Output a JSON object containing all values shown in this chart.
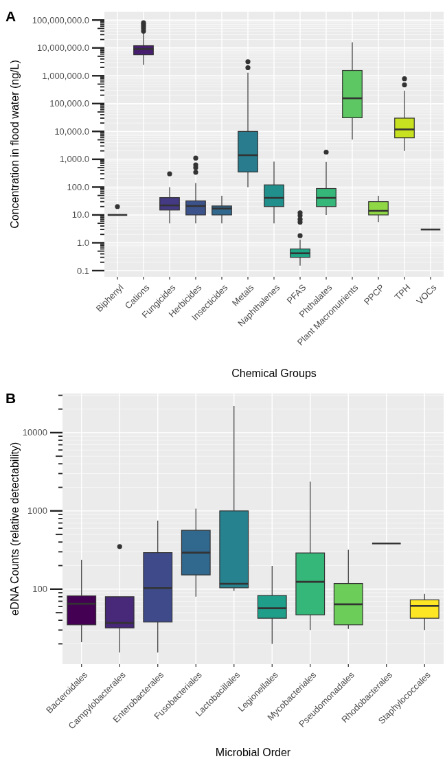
{
  "chart_data": [
    {
      "type": "box",
      "title": "A",
      "xlabel": "Chemical Groups",
      "ylabel": "Concentration in flood water (ng/L)",
      "log": true,
      "grid": true,
      "categories": [
        "Biphenyl",
        "Cations",
        "Fungicides",
        "Herbicides",
        "Insecticides",
        "Metals",
        "Naphthalenes",
        "PFAS",
        "Phthalates",
        "Plant Macronutrients",
        "PPCP",
        "TPH",
        "VOCs"
      ],
      "colors": [
        "#333333",
        "#481f70",
        "#443a83",
        "#3b528b",
        "#31688e",
        "#287c8e",
        "#21908c",
        "#20a486",
        "#35b779",
        "#5dc863",
        "#8fd744",
        "#c7e020",
        "#333333"
      ],
      "boxes": [
        {
          "low": 10,
          "q1": 10,
          "median": 10,
          "q3": 10,
          "high": 10,
          "outliers": [
            20
          ]
        },
        {
          "low": 2450000,
          "q1": 5700000,
          "median": 9100000,
          "q3": 12000000,
          "high": 35000000,
          "outliers": [
            40000000,
            50000000,
            60000000,
            70000000,
            80000000
          ]
        },
        {
          "low": 5,
          "q1": 15,
          "median": 22,
          "q3": 42,
          "high": 100,
          "outliers": [
            300
          ]
        },
        {
          "low": 5,
          "q1": 10,
          "median": 21,
          "q3": 32,
          "high": 140,
          "outliers": [
            340,
            500,
            630,
            1100
          ]
        },
        {
          "low": 5,
          "q1": 10,
          "median": 17,
          "q3": 21,
          "high": 49
        },
        {
          "low": 100,
          "q1": 350,
          "median": 1400,
          "q3": 10000,
          "high": 1300000,
          "outliers": [
            1950000,
            3200000
          ]
        },
        {
          "low": 5,
          "q1": 20,
          "median": 41,
          "q3": 120,
          "high": 830
        },
        {
          "low": 0.15,
          "q1": 0.3,
          "median": 0.42,
          "q3": 0.6,
          "high": 1.3,
          "outliers": [
            1.8,
            5.5,
            7,
            9.5,
            12
          ]
        },
        {
          "low": 10,
          "q1": 20,
          "median": 41,
          "q3": 89,
          "high": 800,
          "outliers": [
            1800
          ]
        },
        {
          "low": 5100,
          "q1": 31000,
          "median": 155000,
          "q3": 1550000,
          "high": 16000000
        },
        {
          "low": 5.6,
          "q1": 10,
          "median": 14,
          "q3": 30,
          "high": 49
        },
        {
          "low": 2000,
          "q1": 5900,
          "median": 11800,
          "q3": 30000,
          "high": 290000,
          "outliers": [
            470000,
            780000
          ]
        },
        {
          "low": 3,
          "q1": 3,
          "median": 3,
          "q3": 3,
          "high": 3
        }
      ],
      "ylim": [
        0.06,
        200000000
      ],
      "yticks": [
        {
          "value": 0.1,
          "label": "0.1"
        },
        {
          "value": 0.2,
          "label": null
        },
        {
          "value": 0.3,
          "label": null
        },
        {
          "value": 0.4,
          "label": null
        },
        {
          "value": 0.5,
          "label": null
        },
        {
          "value": 0.6,
          "label": null
        },
        {
          "value": 0.7,
          "label": null
        },
        {
          "value": 0.8,
          "label": null
        },
        {
          "value": 0.9,
          "label": null
        },
        {
          "value": 1,
          "label": "1.0"
        },
        {
          "value": 2,
          "label": null
        },
        {
          "value": 3,
          "label": null
        },
        {
          "value": 4,
          "label": null
        },
        {
          "value": 5,
          "label": null
        },
        {
          "value": 6,
          "label": null
        },
        {
          "value": 7,
          "label": null
        },
        {
          "value": 8,
          "label": null
        },
        {
          "value": 9,
          "label": null
        },
        {
          "value": 10,
          "label": "10.0"
        },
        {
          "value": 20,
          "label": null
        },
        {
          "value": 30,
          "label": null
        },
        {
          "value": 40,
          "label": null
        },
        {
          "value": 50,
          "label": null
        },
        {
          "value": 60,
          "label": null
        },
        {
          "value": 70,
          "label": null
        },
        {
          "value": 80,
          "label": null
        },
        {
          "value": 90,
          "label": null
        },
        {
          "value": 100,
          "label": "100.0"
        },
        {
          "value": 200,
          "label": null
        },
        {
          "value": 300,
          "label": null
        },
        {
          "value": 400,
          "label": null
        },
        {
          "value": 500,
          "label": null
        },
        {
          "value": 600,
          "label": null
        },
        {
          "value": 700,
          "label": null
        },
        {
          "value": 800,
          "label": null
        },
        {
          "value": 900,
          "label": null
        },
        {
          "value": 1000,
          "label": "1,000.0"
        },
        {
          "value": 2000,
          "label": null
        },
        {
          "value": 3000,
          "label": null
        },
        {
          "value": 4000,
          "label": null
        },
        {
          "value": 5000,
          "label": null
        },
        {
          "value": 6000,
          "label": null
        },
        {
          "value": 7000,
          "label": null
        },
        {
          "value": 8000,
          "label": null
        },
        {
          "value": 9000,
          "label": null
        },
        {
          "value": 10000,
          "label": "10,000.0"
        },
        {
          "value": 20000,
          "label": null
        },
        {
          "value": 30000,
          "label": null
        },
        {
          "value": 40000,
          "label": null
        },
        {
          "value": 50000,
          "label": null
        },
        {
          "value": 60000,
          "label": null
        },
        {
          "value": 70000,
          "label": null
        },
        {
          "value": 80000,
          "label": null
        },
        {
          "value": 90000,
          "label": null
        },
        {
          "value": 100000,
          "label": "100,000.0"
        },
        {
          "value": 200000,
          "label": null
        },
        {
          "value": 300000,
          "label": null
        },
        {
          "value": 400000,
          "label": null
        },
        {
          "value": 500000,
          "label": null
        },
        {
          "value": 600000,
          "label": null
        },
        {
          "value": 700000,
          "label": null
        },
        {
          "value": 800000,
          "label": null
        },
        {
          "value": 900000,
          "label": null
        },
        {
          "value": 1000000,
          "label": "1,000,000.0"
        },
        {
          "value": 2000000,
          "label": null
        },
        {
          "value": 3000000,
          "label": null
        },
        {
          "value": 4000000,
          "label": null
        },
        {
          "value": 5000000,
          "label": null
        },
        {
          "value": 6000000,
          "label": null
        },
        {
          "value": 7000000,
          "label": null
        },
        {
          "value": 8000000,
          "label": null
        },
        {
          "value": 9000000,
          "label": null
        },
        {
          "value": 10000000,
          "label": "10,000,000.0"
        },
        {
          "value": 20000000,
          "label": null
        },
        {
          "value": 30000000,
          "label": null
        },
        {
          "value": 40000000,
          "label": null
        },
        {
          "value": 50000000,
          "label": null
        },
        {
          "value": 60000000,
          "label": null
        },
        {
          "value": 70000000,
          "label": null
        },
        {
          "value": 80000000,
          "label": null
        },
        {
          "value": 90000000,
          "label": null
        },
        {
          "value": 100000000,
          "label": "100,000,000.0"
        }
      ]
    },
    {
      "type": "box",
      "title": "B",
      "xlabel": "Microbial Order",
      "ylabel": "eDNA Counts (relative detectability)",
      "log": true,
      "grid": true,
      "categories": [
        "Bacteroidales",
        "Campylobacterales",
        "Enterobacterales",
        "Fusobacteriales",
        "Lactobacillales",
        "Legionellales",
        "Mycobacteriales",
        "Pseudomonadales",
        "Rhodobacterales",
        "Staphylococcales"
      ],
      "colors": [
        "#440154",
        "#482878",
        "#3e4a89",
        "#31688e",
        "#26828e",
        "#1f9e89",
        "#35b779",
        "#6dcd59",
        "#333333",
        "#fde725"
      ],
      "boxes": [
        {
          "low": 21,
          "q1": 35,
          "median": 65,
          "q3": 82,
          "high": 237
        },
        {
          "low": 15.5,
          "q1": 32,
          "median": 37,
          "q3": 80,
          "high": 80,
          "outliers": [
            350
          ]
        },
        {
          "low": 15.5,
          "q1": 38,
          "median": 103,
          "q3": 293,
          "high": 750
        },
        {
          "low": 80,
          "q1": 152,
          "median": 293,
          "q3": 565,
          "high": 1070
        },
        {
          "low": 95,
          "q1": 104,
          "median": 117,
          "q3": 1000,
          "high": 22000
        },
        {
          "low": 20,
          "q1": 42.5,
          "median": 57,
          "q3": 83,
          "high": 198
        },
        {
          "low": 30,
          "q1": 47,
          "median": 124,
          "q3": 290,
          "high": 2370
        },
        {
          "low": 31,
          "q1": 35,
          "median": 64,
          "q3": 118,
          "high": 319
        },
        {
          "low": 384,
          "q1": 384,
          "median": 384,
          "q3": 384,
          "high": 384
        },
        {
          "low": 30,
          "q1": 42.5,
          "median": 61,
          "q3": 73,
          "high": 87
        }
      ],
      "ylim": [
        11,
        31600
      ],
      "yticks": [
        {
          "value": 20,
          "label": null
        },
        {
          "value": 30,
          "label": null
        },
        {
          "value": 40,
          "label": null
        },
        {
          "value": 50,
          "label": null
        },
        {
          "value": 60,
          "label": null
        },
        {
          "value": 70,
          "label": null
        },
        {
          "value": 80,
          "label": null
        },
        {
          "value": 90,
          "label": null
        },
        100,
        {
          "value": 200,
          "label": null
        },
        {
          "value": 300,
          "label": null
        },
        {
          "value": 400,
          "label": null
        },
        {
          "value": 500,
          "label": null
        },
        {
          "value": 600,
          "label": null
        },
        {
          "value": 700,
          "label": null
        },
        {
          "value": 800,
          "label": null
        },
        {
          "value": 900,
          "label": null
        },
        1000,
        {
          "value": 2000,
          "label": null
        },
        {
          "value": 3000,
          "label": null
        },
        {
          "value": 4000,
          "label": null
        },
        {
          "value": 5000,
          "label": null
        },
        {
          "value": 6000,
          "label": null
        },
        {
          "value": 7000,
          "label": null
        },
        {
          "value": 8000,
          "label": null
        },
        {
          "value": 9000,
          "label": null
        },
        10000,
        {
          "value": 20000,
          "label": null
        },
        {
          "value": 30000,
          "label": null
        }
      ]
    }
  ]
}
